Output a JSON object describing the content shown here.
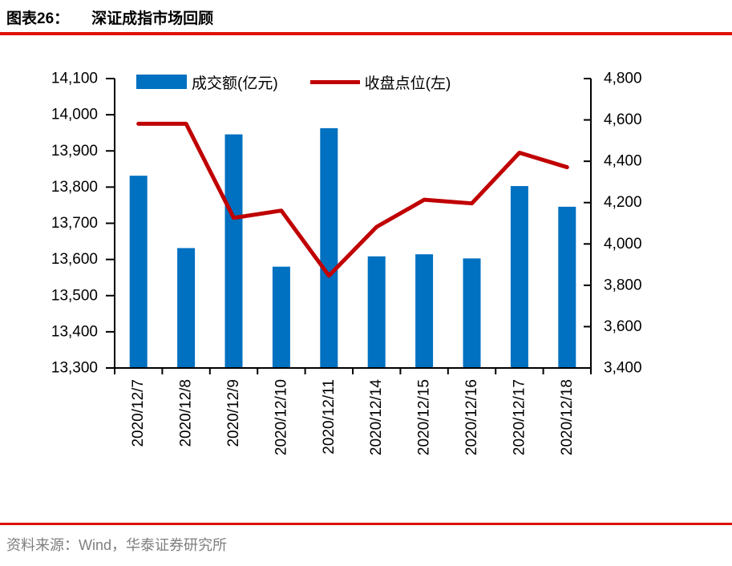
{
  "header": {
    "figure_label": "图表26：",
    "title": "深证成指市场回顾"
  },
  "footer": {
    "source": "资料来源：Wind，华泰证券研究所"
  },
  "colors": {
    "bar": "#0070C0",
    "line": "#C00000",
    "rule": "#DD1100",
    "axis": "#000000",
    "source_text": "#7F7F7F"
  },
  "chart_data": {
    "type": "bar",
    "subtype": "combo-bar-line-dual-axis",
    "categories": [
      "2020/12/7",
      "2020/12/8",
      "2020/12/9",
      "2020/12/10",
      "2020/12/11",
      "2020/12/14",
      "2020/12/15",
      "2020/12/16",
      "2020/12/17",
      "2020/12/18"
    ],
    "series": [
      {
        "name": "成交额(亿元)",
        "type": "bar",
        "axis": "right",
        "color": "#0070C0",
        "values": [
          4330,
          3980,
          4530,
          3890,
          4560,
          3940,
          3950,
          3930,
          4280,
          4180
        ]
      },
      {
        "name": "收盘点位(左)",
        "type": "line",
        "axis": "left",
        "color": "#C00000",
        "values": [
          13975,
          13975,
          13715,
          13735,
          13555,
          13690,
          13765,
          13755,
          13895,
          13855
        ]
      }
    ],
    "left_axis": {
      "min": 13300,
      "max": 14100,
      "step": 100,
      "tick_labels": [
        "14,100",
        "14,000",
        "13,900",
        "13,800",
        "13,700",
        "13,600",
        "13,500",
        "13,400",
        "13,300"
      ]
    },
    "right_axis": {
      "min": 3400,
      "max": 4800,
      "step": 200,
      "tick_labels": [
        "4,800",
        "4,600",
        "4,400",
        "4,200",
        "4,000",
        "3,800",
        "3,600",
        "3,400"
      ]
    },
    "legend_position": "top",
    "grid": false,
    "x_labels_rotated_degrees": 90
  }
}
